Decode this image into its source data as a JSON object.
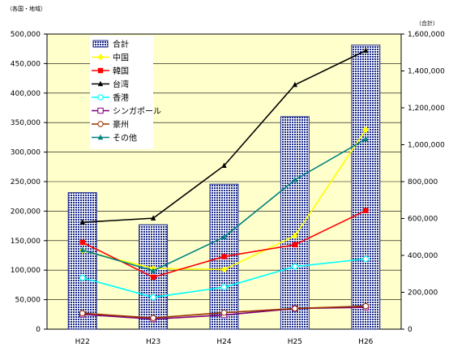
{
  "chart_data": {
    "type": "bar",
    "categories": [
      "H22",
      "H23",
      "H24",
      "H25",
      "H26"
    ],
    "left_axis_unit": "（各国・地域）",
    "right_axis_unit": "（合計）",
    "left_axis": {
      "ylim": [
        0,
        500000
      ],
      "ticks": [
        "0",
        "50,000",
        "100,000",
        "150,000",
        "200,000",
        "250,000",
        "300,000",
        "350,000",
        "400,000",
        "450,000",
        "500,000"
      ]
    },
    "right_axis": {
      "ylim": [
        0,
        1600000
      ],
      "ticks": [
        "0",
        "200,000",
        "400,000",
        "600,000",
        "800,000",
        "1,000,000",
        "1,200,000",
        "1,400,000",
        "1,600,000"
      ]
    },
    "plot_background": "#ffffcc",
    "grid": true,
    "legend_position": "top-left",
    "series": [
      {
        "name": "合計",
        "kind": "bar",
        "axis": "right",
        "color": "#1a2a8a",
        "marker": "none",
        "values": [
          740000,
          566000,
          786000,
          1152000,
          1540000
        ]
      },
      {
        "name": "中国",
        "kind": "line",
        "axis": "left",
        "color": "#ffff00",
        "marker": "diamond",
        "values": [
          133000,
          103000,
          101000,
          158000,
          338000
        ]
      },
      {
        "name": "韓国",
        "kind": "line",
        "axis": "left",
        "color": "#ff0000",
        "marker": "square",
        "values": [
          147000,
          88000,
          123000,
          143000,
          201000
        ]
      },
      {
        "name": "台湾",
        "kind": "line",
        "axis": "left",
        "color": "#000000",
        "marker": "triangle",
        "values": [
          181000,
          188000,
          277000,
          414000,
          472000
        ]
      },
      {
        "name": "香港",
        "kind": "line",
        "axis": "left",
        "color": "#00ffff",
        "marker": "circle",
        "values": [
          87000,
          54000,
          71000,
          106000,
          119000
        ]
      },
      {
        "name": "シンガポール",
        "kind": "line",
        "axis": "left",
        "color": "#800080",
        "marker": "square-open",
        "values": [
          25000,
          17000,
          24000,
          35000,
          37000
        ]
      },
      {
        "name": "豪州",
        "kind": "line",
        "axis": "left",
        "color": "#993300",
        "marker": "circle-open",
        "values": [
          27000,
          19000,
          28000,
          35000,
          39000
        ]
      },
      {
        "name": "その他",
        "kind": "line",
        "axis": "left",
        "color": "#008080",
        "marker": "triangle",
        "values": [
          134000,
          99000,
          156000,
          253000,
          322000
        ]
      }
    ]
  }
}
